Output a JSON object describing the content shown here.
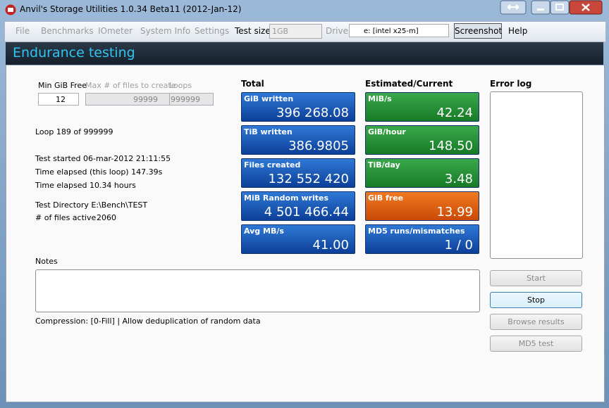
{
  "window": {
    "title": "Anvil's Storage Utilities 1.0.34 Beta11 (2012-Jan-12)"
  },
  "menu": {
    "items": [
      "File",
      "Benchmarks",
      "IOmeter",
      "System Info",
      "Settings"
    ],
    "test_size_label": "Test size",
    "test_size": "1GB",
    "drive_label": "Drive",
    "drive": "e: [intel x25-m]",
    "screenshot": "Screenshot",
    "help": "Help"
  },
  "header": {
    "title": "Endurance testing"
  },
  "fields": [
    {
      "label": "Min GiB Free",
      "value": "12"
    },
    {
      "label": "Max # of files to create",
      "value": "99999"
    },
    {
      "label": "Loops",
      "value": "999999"
    }
  ],
  "status": {
    "loop": "Loop 189 of 999999",
    "started": "Test started 06-mar-2012 21:11:55",
    "elapsed_loop": "Time elapsed (this loop) 147.39s",
    "elapsed": "Time elapsed 10.34 hours",
    "directory": "Test Directory E:\\Bench\\TEST",
    "files_active_label": "# of files active",
    "files_active": "2060"
  },
  "total": {
    "heading": "Total",
    "tiles": [
      {
        "label": "GiB written",
        "value": "396 268.08"
      },
      {
        "label": "TiB written",
        "value": "386.9805"
      },
      {
        "label": "Files created",
        "value": "132 552 420"
      },
      {
        "label": "MiB Random writes",
        "value": "4 501 466.44"
      },
      {
        "label": "Avg MB/s",
        "value": "41.00"
      }
    ]
  },
  "estimated": {
    "heading": "Estimated/Current",
    "tiles": [
      {
        "label": "MiB/s",
        "value": "42.24"
      },
      {
        "label": "GiB/hour",
        "value": "148.50"
      },
      {
        "label": "TiB/day",
        "value": "3.48"
      },
      {
        "label": "GiB free",
        "value": "13.99"
      },
      {
        "label": "MD5 runs/mismatches",
        "value": "1 / 0"
      }
    ]
  },
  "error_log": {
    "heading": "Error log"
  },
  "notes": {
    "label": "Notes",
    "compression": "Compression: [0-Fill] | Allow deduplication of random data"
  },
  "buttons": [
    "Start",
    "Stop",
    "Browse results",
    "MD5 test"
  ]
}
